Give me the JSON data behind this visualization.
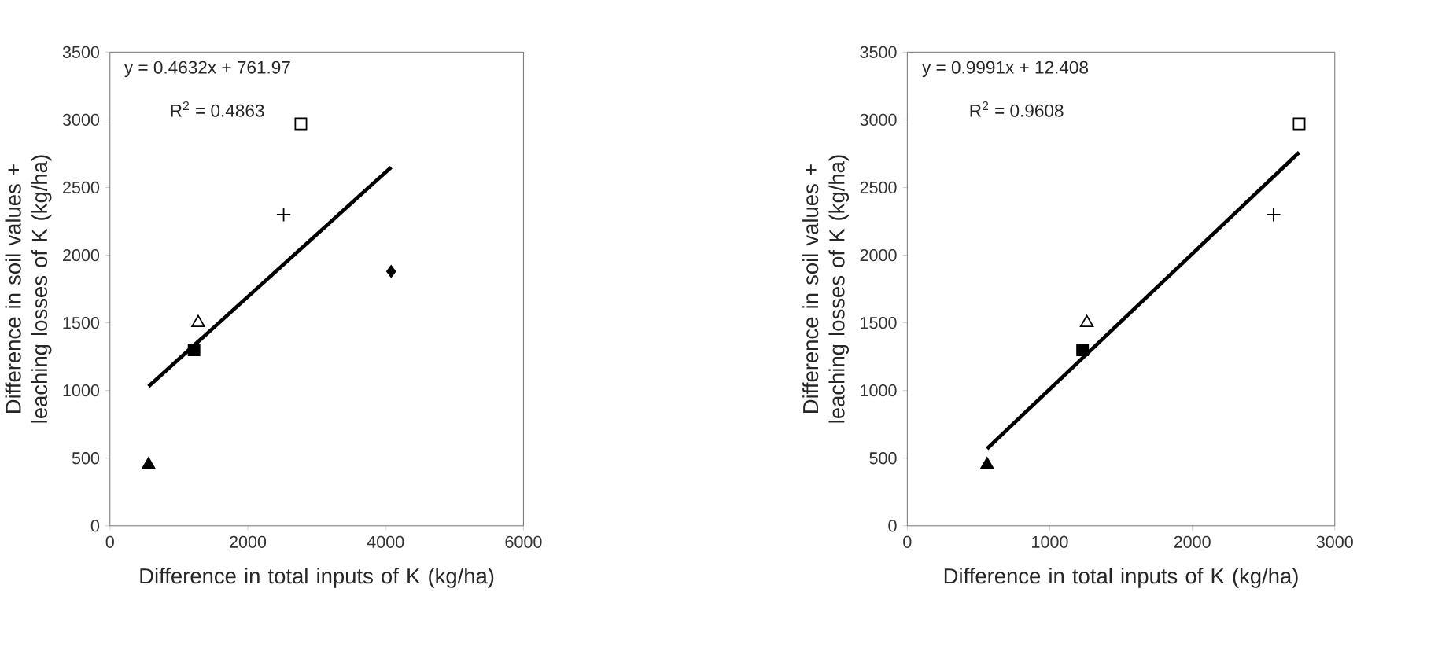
{
  "chart_data": [
    {
      "type": "scatter",
      "xlabel": "Difference in total inputs of K (kg/ha)",
      "ylabel": "Difference in soil values + leaching losses of K (kg/ha)",
      "xlim": [
        0,
        6000
      ],
      "xticks": [
        0,
        2000,
        4000,
        6000
      ],
      "ylim": [
        0,
        3500
      ],
      "yticks": [
        0,
        500,
        1000,
        1500,
        2000,
        2500,
        3000,
        3500
      ],
      "annotations": [
        "y = 0.4632x + 761.97",
        "R$^{2}$ = 0.4863"
      ],
      "series": [
        {
          "color": "#000000",
          "marker": "triangle",
          "x": [
            560
          ],
          "values": [
            450
          ]
        },
        {
          "color": "#000000",
          "marker": "square",
          "x": [
            1220
          ],
          "values": [
            1300
          ]
        },
        {
          "color": "#000000",
          "marker": "triangle",
          "x": [
            1280
          ],
          "values": [
            1500
          ]
        },
        {
          "color": "#000000",
          "marker": "cross",
          "x": [
            2520
          ],
          "values": [
            2300
          ]
        },
        {
          "color": "#000000",
          "marker": "square",
          "x": [
            2770
          ],
          "values": [
            2970
          ]
        },
        {
          "color": "#000000",
          "marker": "diamond",
          "x": [
            4080
          ],
          "values": [
            1880
          ]
        },
        {
          "type": "line",
          "color": "#000000",
          "x": [
            560,
            4080
          ],
          "values": [
            1030,
            2650
          ]
        }
      ]
    },
    {
      "type": "scatter",
      "xlabel": "Difference in total inputs of K (kg/ha)",
      "ylabel": "Difference in soil values + leaching losses of K (kg/ha)",
      "xlim": [
        0,
        3000
      ],
      "xticks": [
        0,
        1000,
        2000,
        3000
      ],
      "ylim": [
        0,
        3500
      ],
      "yticks": [
        0,
        500,
        1000,
        1500,
        2000,
        2500,
        3000,
        3500
      ],
      "annotations": [
        "y = 0.9991x + 12.408",
        "R$^{2}$ = 0.9608"
      ],
      "series": [
        {
          "color": "#000000",
          "marker": "triangle",
          "x": [
            560
          ],
          "values": [
            450
          ]
        },
        {
          "color": "#000000",
          "marker": "square",
          "x": [
            1230
          ],
          "values": [
            1300
          ]
        },
        {
          "color": "#000000",
          "marker": "triangle",
          "x": [
            1260
          ],
          "values": [
            1500
          ]
        },
        {
          "color": "#000000",
          "marker": "cross",
          "x": [
            2570
          ],
          "values": [
            2300
          ]
        },
        {
          "color": "#000000",
          "marker": "square",
          "x": [
            2750
          ],
          "values": [
            2970
          ]
        },
        {
          "type": "line",
          "color": "#000000",
          "x": [
            560,
            2750
          ],
          "values": [
            570,
            2760
          ]
        }
      ]
    }
  ]
}
